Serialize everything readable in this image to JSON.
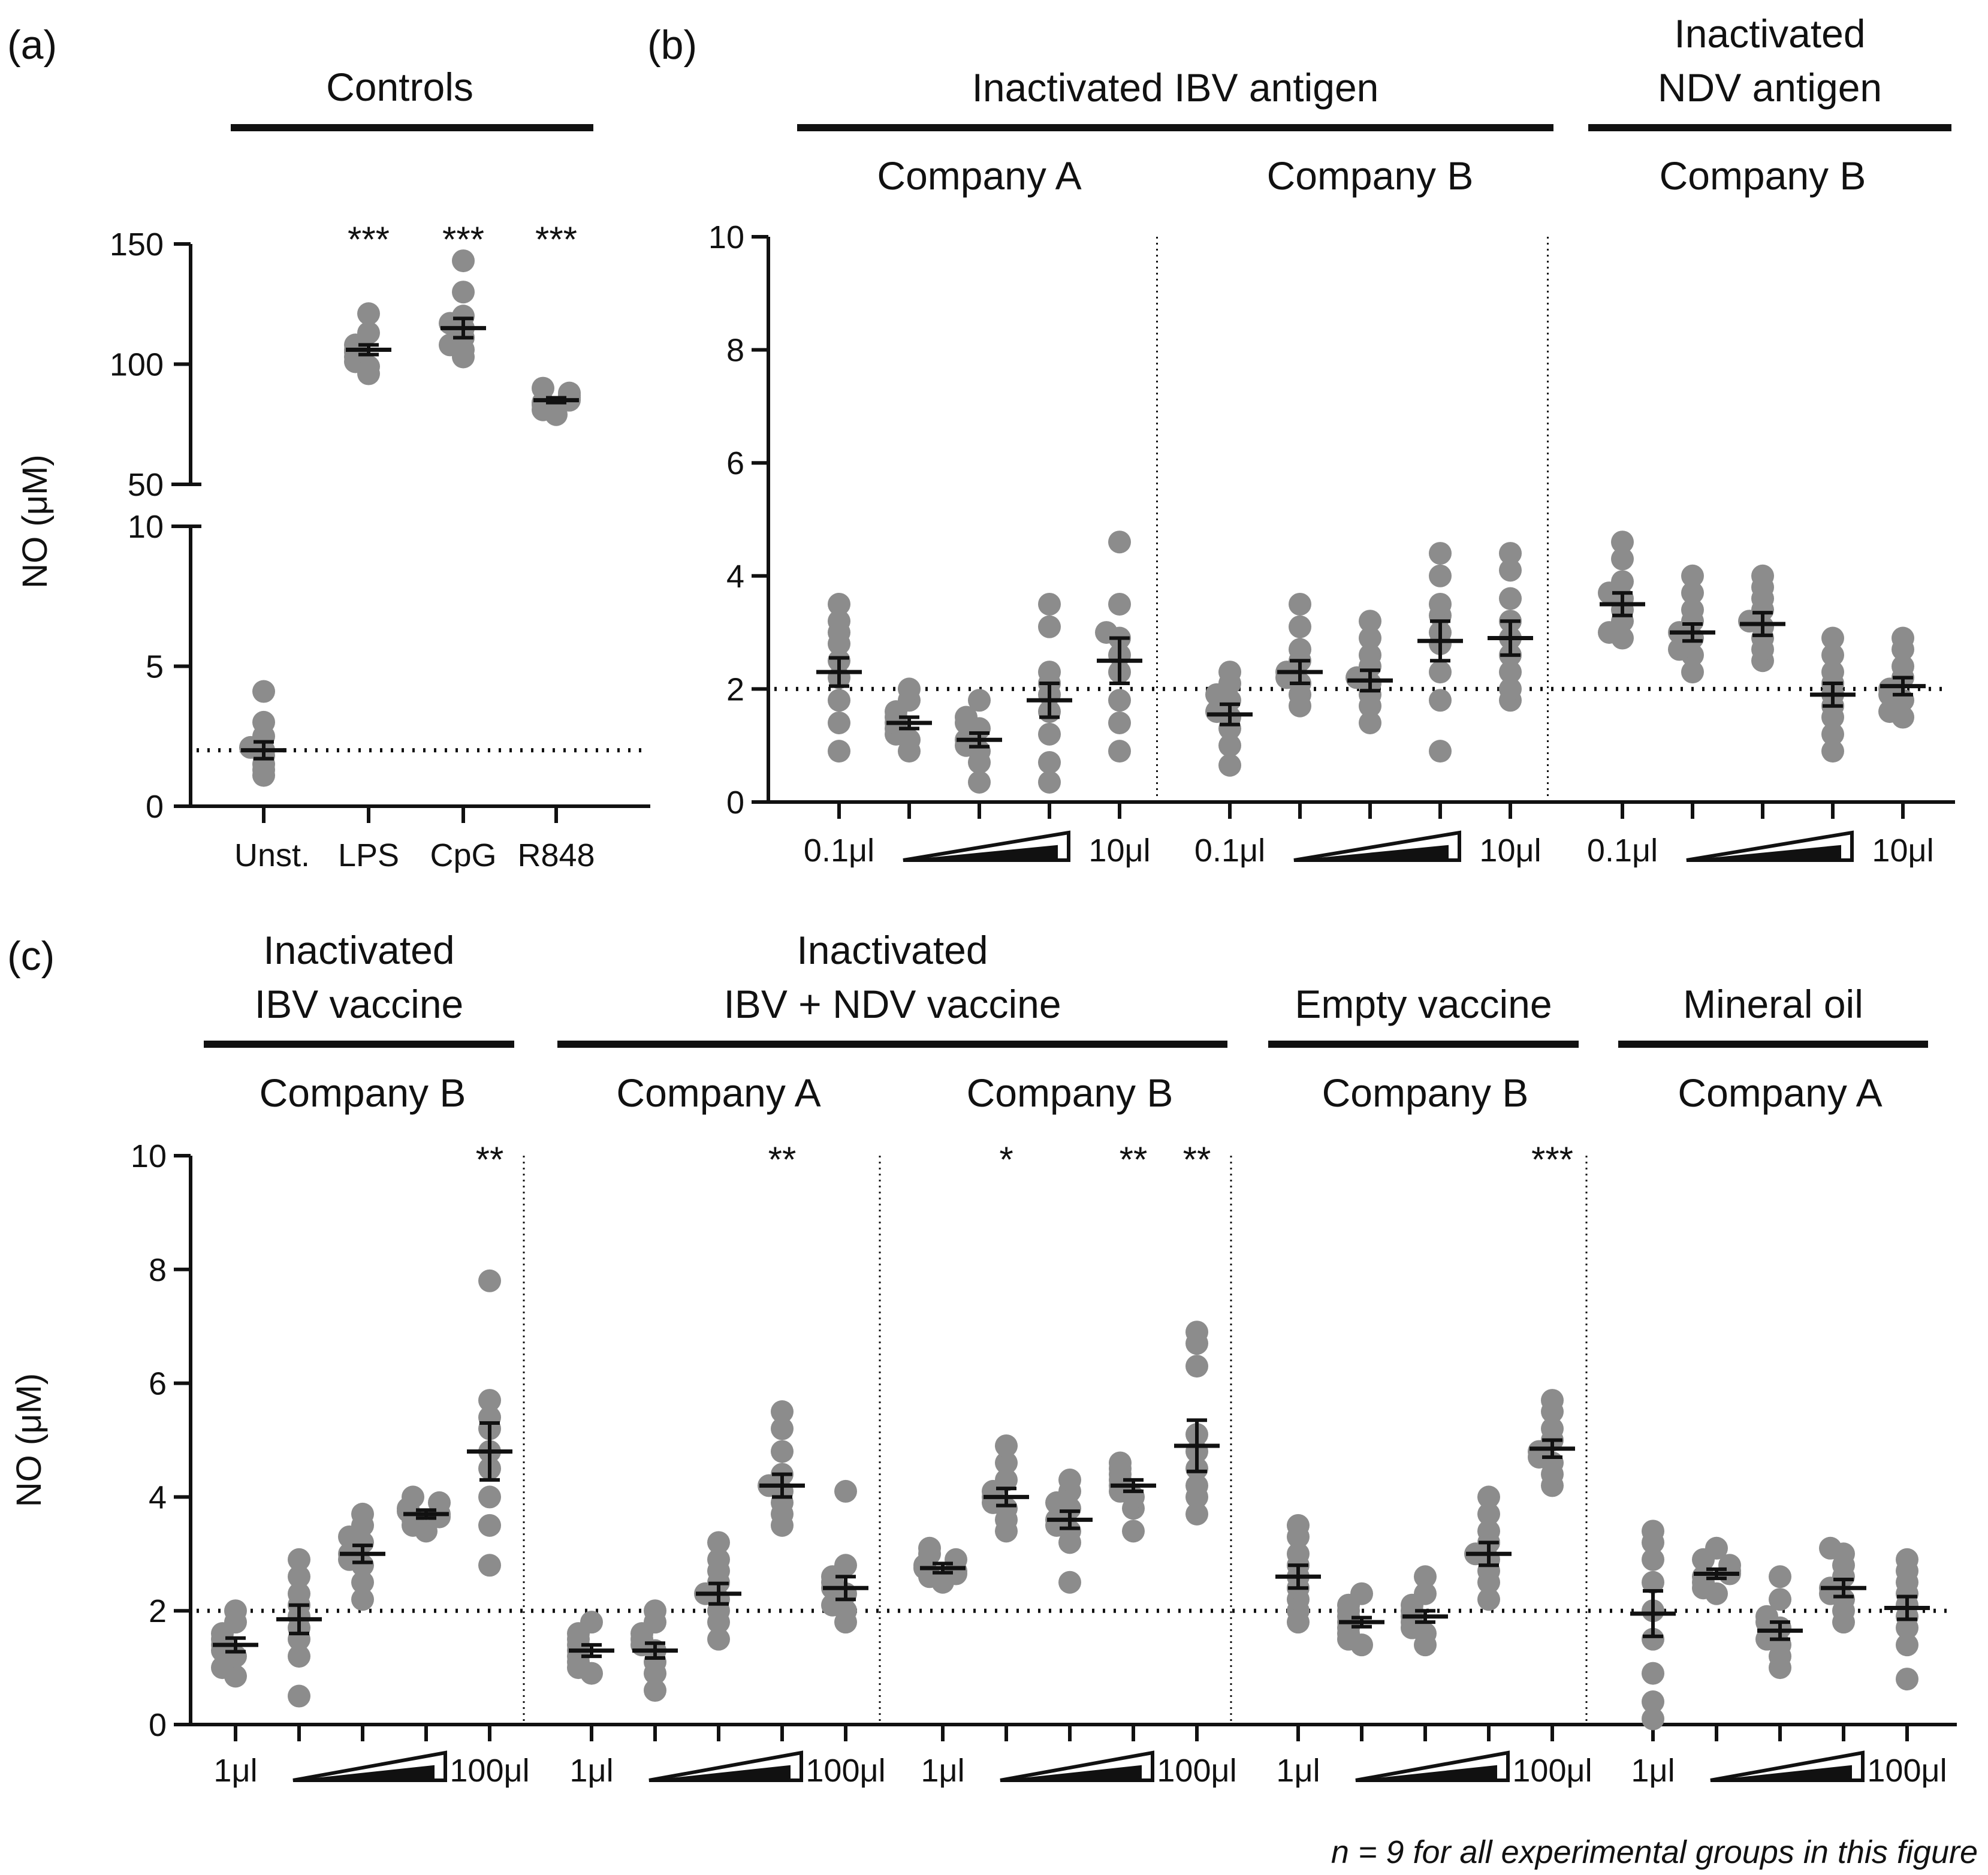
{
  "footnote": "n = 9 for all experimental groups in this figure",
  "colors": {
    "point": "#8c8c8c",
    "line": "#111111"
  },
  "chart_data": [
    {
      "id": "a",
      "panel_label": "(a)",
      "type": "scatter",
      "title": "Controls",
      "ylabel": "NO (μM)",
      "axis_break": {
        "lower": [
          0,
          10
        ],
        "upper": [
          50,
          150
        ]
      },
      "lower_ticks": [
        "0",
        "5",
        "10"
      ],
      "upper_ticks": [
        "50",
        "100",
        "150"
      ],
      "baseline": 2,
      "categories": [
        "Unst.",
        "LPS",
        "CpG",
        "R848"
      ],
      "groups": [
        {
          "name": "Unst.",
          "mean": 2.0,
          "sem": 0.3,
          "points": [
            1.1,
            1.3,
            1.5,
            1.8,
            2.0,
            2.1,
            2.5,
            3.0,
            4.1
          ],
          "sig": ""
        },
        {
          "name": "LPS",
          "mean": 106,
          "sem": 2,
          "points": [
            96,
            99,
            101,
            103,
            105,
            106,
            108,
            113,
            121
          ],
          "sig": "***"
        },
        {
          "name": "CpG",
          "mean": 115,
          "sem": 4,
          "points": [
            103,
            106,
            108,
            111,
            115,
            117,
            120,
            130,
            143
          ],
          "sig": "***"
        },
        {
          "name": "R848",
          "mean": 85,
          "sem": 1,
          "points": [
            79,
            81,
            83,
            84,
            85,
            86,
            87,
            88,
            90
          ],
          "sig": "***"
        }
      ]
    },
    {
      "id": "b",
      "panel_label": "(b)",
      "type": "scatter",
      "ylabel": "",
      "ylim": [
        0,
        10
      ],
      "yticks": [
        "0",
        "2",
        "4",
        "6",
        "8",
        "10"
      ],
      "baseline": 2,
      "headers": [
        {
          "title": "Inactivated IBV antigen",
          "sections": [
            0,
            1
          ]
        },
        {
          "title_lines": [
            "Inactivated",
            "NDV antigen"
          ],
          "sections": [
            2
          ]
        }
      ],
      "sections": [
        {
          "company": "Company A",
          "dose_low": "0.1μl",
          "dose_high": "10μl",
          "groups": [
            {
              "mean": 2.3,
              "sem": 0.25,
              "points": [
                0.9,
                1.4,
                1.8,
                2.2,
                2.5,
                2.8,
                3.0,
                3.2,
                3.5
              ],
              "sig": ""
            },
            {
              "mean": 1.4,
              "sem": 0.1,
              "points": [
                0.9,
                1.1,
                1.2,
                1.3,
                1.4,
                1.5,
                1.6,
                1.8,
                2.0
              ],
              "sig": ""
            },
            {
              "mean": 1.1,
              "sem": 0.12,
              "points": [
                0.35,
                0.7,
                0.9,
                1.0,
                1.1,
                1.3,
                1.4,
                1.5,
                1.8
              ],
              "sig": ""
            },
            {
              "mean": 1.8,
              "sem": 0.3,
              "points": [
                0.35,
                0.7,
                1.2,
                1.6,
                1.9,
                2.1,
                2.3,
                3.1,
                3.5
              ],
              "sig": ""
            },
            {
              "mean": 2.5,
              "sem": 0.4,
              "points": [
                0.9,
                1.4,
                1.8,
                2.3,
                2.6,
                2.9,
                3.0,
                3.5,
                4.6
              ],
              "sig": ""
            }
          ]
        },
        {
          "company": "Company B",
          "dose_low": "0.1μl",
          "dose_high": "10μl",
          "groups": [
            {
              "mean": 1.55,
              "sem": 0.18,
              "points": [
                0.65,
                1.0,
                1.3,
                1.5,
                1.6,
                1.8,
                1.9,
                2.1,
                2.3
              ],
              "sig": ""
            },
            {
              "mean": 2.3,
              "sem": 0.2,
              "points": [
                1.7,
                1.9,
                2.1,
                2.2,
                2.3,
                2.5,
                2.7,
                3.1,
                3.5
              ],
              "sig": ""
            },
            {
              "mean": 2.15,
              "sem": 0.18,
              "points": [
                1.4,
                1.7,
                1.9,
                2.1,
                2.2,
                2.4,
                2.6,
                2.9,
                3.2
              ],
              "sig": ""
            },
            {
              "mean": 2.85,
              "sem": 0.35,
              "points": [
                0.9,
                1.8,
                2.3,
                2.8,
                3.0,
                3.3,
                3.5,
                4.0,
                4.4
              ],
              "sig": ""
            },
            {
              "mean": 2.9,
              "sem": 0.3,
              "points": [
                1.8,
                2.0,
                2.3,
                2.6,
                2.9,
                3.2,
                3.6,
                4.1,
                4.4
              ],
              "sig": ""
            }
          ]
        },
        {
          "company": "Company B",
          "dose_low": "0.1μl",
          "dose_high": "10μl",
          "groups": [
            {
              "mean": 3.5,
              "sem": 0.2,
              "points": [
                2.9,
                3.0,
                3.2,
                3.4,
                3.6,
                3.7,
                3.9,
                4.3,
                4.6
              ],
              "sig": ""
            },
            {
              "mean": 3.0,
              "sem": 0.15,
              "points": [
                2.3,
                2.6,
                2.7,
                2.9,
                3.0,
                3.2,
                3.4,
                3.7,
                4.0
              ],
              "sig": ""
            },
            {
              "mean": 3.15,
              "sem": 0.2,
              "points": [
                2.5,
                2.7,
                2.9,
                3.1,
                3.2,
                3.4,
                3.6,
                3.8,
                4.0
              ],
              "sig": ""
            },
            {
              "mean": 1.9,
              "sem": 0.2,
              "points": [
                0.9,
                1.2,
                1.5,
                1.7,
                1.9,
                2.1,
                2.3,
                2.6,
                2.9
              ],
              "sig": ""
            },
            {
              "mean": 2.05,
              "sem": 0.15,
              "points": [
                1.5,
                1.6,
                1.8,
                1.9,
                2.0,
                2.2,
                2.4,
                2.7,
                2.9
              ],
              "sig": ""
            }
          ]
        }
      ]
    },
    {
      "id": "c",
      "panel_label": "(c)",
      "type": "scatter",
      "ylabel": "NO (μM)",
      "ylim": [
        0,
        10
      ],
      "yticks": [
        "0",
        "2",
        "4",
        "6",
        "8",
        "10"
      ],
      "baseline": 2,
      "headers": [
        {
          "title_lines": [
            "Inactivated",
            "IBV vaccine"
          ],
          "sections": [
            0
          ]
        },
        {
          "title_lines": [
            "Inactivated",
            "IBV + NDV vaccine"
          ],
          "sections": [
            1,
            2
          ]
        },
        {
          "title": "Empty vaccine",
          "sections": [
            3
          ]
        },
        {
          "title": "Mineral oil",
          "sections": [
            4
          ]
        }
      ],
      "sections": [
        {
          "company": "Company B",
          "dose_low": "1μl",
          "dose_high": "100μl",
          "groups": [
            {
              "mean": 1.4,
              "sem": 0.12,
              "points": [
                0.85,
                1.0,
                1.2,
                1.3,
                1.4,
                1.5,
                1.6,
                1.8,
                2.0
              ],
              "sig": ""
            },
            {
              "mean": 1.85,
              "sem": 0.25,
              "points": [
                0.5,
                1.2,
                1.5,
                1.7,
                1.9,
                2.1,
                2.3,
                2.6,
                2.9
              ],
              "sig": ""
            },
            {
              "mean": 3.0,
              "sem": 0.15,
              "points": [
                2.2,
                2.5,
                2.8,
                2.9,
                3.0,
                3.2,
                3.3,
                3.5,
                3.7
              ],
              "sig": ""
            },
            {
              "mean": 3.7,
              "sem": 0.07,
              "points": [
                3.4,
                3.5,
                3.6,
                3.65,
                3.7,
                3.75,
                3.8,
                3.9,
                4.0
              ],
              "sig": ""
            },
            {
              "mean": 4.8,
              "sem": 0.5,
              "points": [
                2.8,
                3.5,
                4.0,
                4.5,
                4.8,
                5.2,
                5.4,
                5.7,
                7.8
              ],
              "sig": "**"
            }
          ]
        },
        {
          "company": "Company A",
          "dose_low": "1μl",
          "dose_high": "100μl",
          "groups": [
            {
              "mean": 1.3,
              "sem": 0.1,
              "points": [
                0.9,
                1.0,
                1.1,
                1.2,
                1.3,
                1.4,
                1.5,
                1.6,
                1.8
              ],
              "sig": ""
            },
            {
              "mean": 1.3,
              "sem": 0.13,
              "points": [
                0.6,
                0.9,
                1.1,
                1.3,
                1.4,
                1.5,
                1.6,
                1.8,
                2.0
              ],
              "sig": ""
            },
            {
              "mean": 2.3,
              "sem": 0.18,
              "points": [
                1.5,
                1.8,
                2.0,
                2.2,
                2.3,
                2.5,
                2.7,
                2.9,
                3.2
              ],
              "sig": ""
            },
            {
              "mean": 4.2,
              "sem": 0.2,
              "points": [
                3.5,
                3.7,
                3.9,
                4.1,
                4.2,
                4.4,
                4.8,
                5.2,
                5.5
              ],
              "sig": "**"
            },
            {
              "mean": 2.4,
              "sem": 0.2,
              "points": [
                1.8,
                2.0,
                2.1,
                2.3,
                2.4,
                2.5,
                2.6,
                2.8,
                4.1
              ],
              "sig": ""
            }
          ]
        },
        {
          "company": "Company B",
          "dose_low": "1μl",
          "dose_high": "100μl",
          "groups": [
            {
              "mean": 2.75,
              "sem": 0.08,
              "points": [
                2.5,
                2.6,
                2.65,
                2.7,
                2.75,
                2.8,
                2.9,
                3.0,
                3.1
              ],
              "sig": ""
            },
            {
              "mean": 4.0,
              "sem": 0.15,
              "points": [
                3.4,
                3.6,
                3.8,
                3.9,
                4.0,
                4.1,
                4.3,
                4.6,
                4.9
              ],
              "sig": "*"
            },
            {
              "mean": 3.6,
              "sem": 0.15,
              "points": [
                2.5,
                3.2,
                3.4,
                3.5,
                3.6,
                3.8,
                3.9,
                4.1,
                4.3
              ],
              "sig": ""
            },
            {
              "mean": 4.2,
              "sem": 0.1,
              "points": [
                3.4,
                3.8,
                4.0,
                4.1,
                4.2,
                4.3,
                4.4,
                4.5,
                4.6
              ],
              "sig": "**"
            },
            {
              "mean": 4.9,
              "sem": 0.45,
              "points": [
                3.7,
                4.0,
                4.2,
                4.5,
                4.8,
                5.1,
                6.3,
                6.7,
                6.9
              ],
              "sig": "**"
            }
          ]
        },
        {
          "company": "Company B",
          "dose_low": "1μl",
          "dose_high": "100μl",
          "groups": [
            {
              "mean": 2.6,
              "sem": 0.2,
              "points": [
                1.8,
                2.0,
                2.2,
                2.4,
                2.6,
                2.8,
                3.0,
                3.3,
                3.5
              ],
              "sig": ""
            },
            {
              "mean": 1.8,
              "sem": 0.08,
              "points": [
                1.4,
                1.5,
                1.6,
                1.7,
                1.8,
                1.9,
                2.0,
                2.1,
                2.3
              ],
              "sig": ""
            },
            {
              "mean": 1.9,
              "sem": 0.1,
              "points": [
                1.4,
                1.6,
                1.7,
                1.8,
                1.9,
                2.0,
                2.1,
                2.3,
                2.6
              ],
              "sig": ""
            },
            {
              "mean": 3.0,
              "sem": 0.2,
              "points": [
                2.2,
                2.5,
                2.7,
                2.9,
                3.0,
                3.2,
                3.4,
                3.7,
                4.0
              ],
              "sig": ""
            },
            {
              "mean": 4.85,
              "sem": 0.15,
              "points": [
                4.2,
                4.4,
                4.6,
                4.7,
                4.8,
                5.0,
                5.2,
                5.5,
                5.7
              ],
              "sig": "***"
            }
          ]
        },
        {
          "company": "Company A",
          "dose_low": "1μl",
          "dose_high": "100μl",
          "groups": [
            {
              "mean": 1.95,
              "sem": 0.4,
              "points": [
                0.1,
                0.4,
                0.9,
                1.5,
                2.0,
                2.5,
                2.9,
                3.2,
                3.4
              ],
              "sig": ""
            },
            {
              "mean": 2.65,
              "sem": 0.08,
              "points": [
                2.3,
                2.4,
                2.5,
                2.6,
                2.65,
                2.7,
                2.8,
                2.9,
                3.1
              ],
              "sig": ""
            },
            {
              "mean": 1.65,
              "sem": 0.15,
              "points": [
                1.0,
                1.2,
                1.4,
                1.5,
                1.7,
                1.8,
                1.9,
                2.2,
                2.6
              ],
              "sig": ""
            },
            {
              "mean": 2.4,
              "sem": 0.15,
              "points": [
                1.8,
                2.0,
                2.2,
                2.3,
                2.4,
                2.6,
                2.8,
                3.0,
                3.1
              ],
              "sig": ""
            },
            {
              "mean": 2.05,
              "sem": 0.2,
              "points": [
                0.8,
                1.4,
                1.7,
                1.9,
                2.1,
                2.3,
                2.5,
                2.7,
                2.9
              ],
              "sig": ""
            }
          ]
        }
      ]
    }
  ]
}
